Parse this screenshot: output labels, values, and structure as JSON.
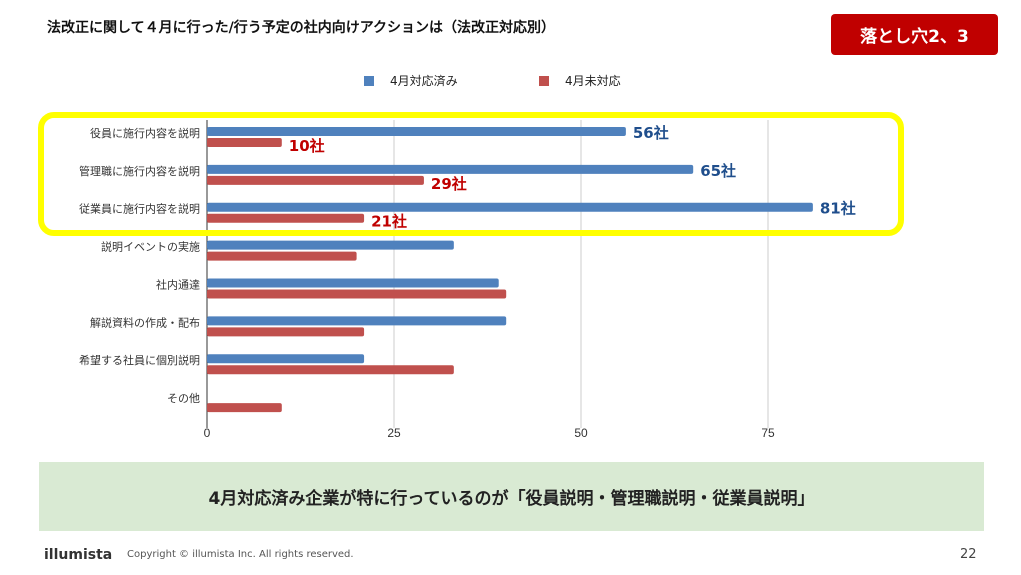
{
  "slide": {
    "title": "法改正に関して４月に行った/行う予定の社内向けアクションは（法改正対応別）",
    "badge": "落とし穴2、3",
    "summary": "4月対応済み企業が特に行っているのが「役員説明・管理職説明・従業員説明」",
    "footer_logo": "illumista",
    "copyright": "Copyright © illumista Inc. All rights reserved.",
    "page_number": "22"
  },
  "colors": {
    "series_done": "#4f81bd",
    "series_not_done": "#c0504d",
    "label_done": "#1f4e8c",
    "label_not_done": "#c00000",
    "highlight": "#ffff00",
    "badge": "#c00000",
    "summary_bg": "#d9ead3"
  },
  "chart_data": {
    "type": "bar",
    "orientation": "horizontal",
    "title": "",
    "xlabel": "",
    "ylabel": "",
    "xlim": [
      0,
      87
    ],
    "x_ticks": [
      "0",
      "25",
      "50",
      "75"
    ],
    "x_tick_values": [
      0,
      25,
      50,
      75
    ],
    "grid": true,
    "legend_position": "top",
    "categories": [
      "役員に施行内容を説明",
      "管理職に施行内容を説明",
      "従業員に施行内容を説明",
      "説明イベントの実施",
      "社内通達",
      "解説資料の作成・配布",
      "希望する社員に個別説明",
      "その他"
    ],
    "series": [
      {
        "name": "4月対応済み",
        "values": [
          56,
          65,
          81,
          33,
          39,
          40,
          21,
          0
        ],
        "data_labels": [
          "56社",
          "65社",
          "81社",
          null,
          null,
          null,
          null,
          null
        ]
      },
      {
        "name": "4月未対応",
        "values": [
          10,
          29,
          21,
          20,
          40,
          21,
          33,
          10
        ],
        "data_labels": [
          "10社",
          "29社",
          "21社",
          null,
          null,
          null,
          null,
          null
        ]
      }
    ]
  }
}
